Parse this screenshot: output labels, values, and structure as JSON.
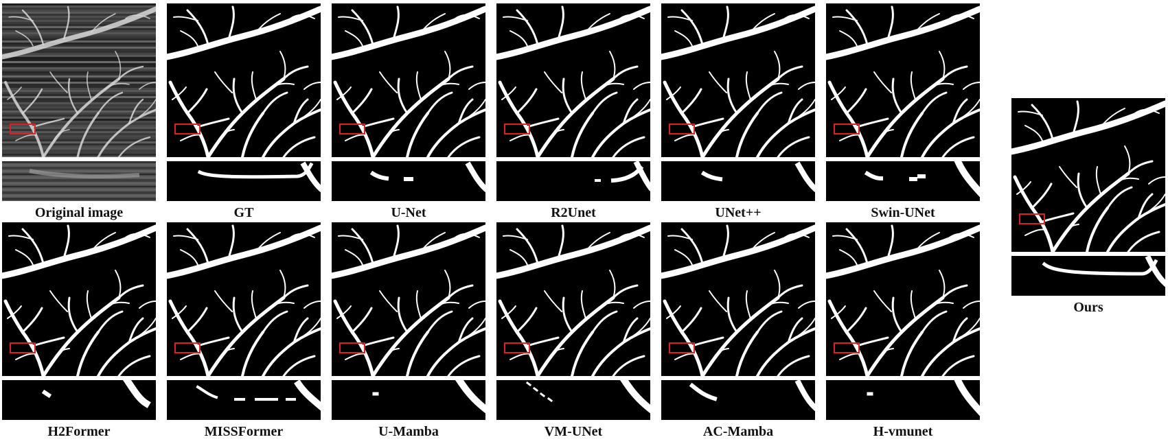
{
  "figure": {
    "panels": [
      {
        "label": "Original image",
        "kind": "original"
      },
      {
        "label": "GT",
        "kind": "seg"
      },
      {
        "label": "U-Net",
        "kind": "seg"
      },
      {
        "label": "R2Unet",
        "kind": "seg"
      },
      {
        "label": "UNet++",
        "kind": "seg"
      },
      {
        "label": "Swin-UNet",
        "kind": "seg"
      },
      {
        "label": "H2Former",
        "kind": "seg"
      },
      {
        "label": "MISSFormer",
        "kind": "seg"
      },
      {
        "label": "U-Mamba",
        "kind": "seg"
      },
      {
        "label": "VM-UNet",
        "kind": "seg"
      },
      {
        "label": "AC-Mamba",
        "kind": "seg"
      },
      {
        "label": "H-vmunet",
        "kind": "seg"
      },
      {
        "label": "Ours",
        "kind": "seg"
      }
    ],
    "colors": {
      "background": "#000000",
      "vessel": "#ffffff",
      "roi_box": "#e02020",
      "original_background": "#3a3a3a"
    }
  }
}
